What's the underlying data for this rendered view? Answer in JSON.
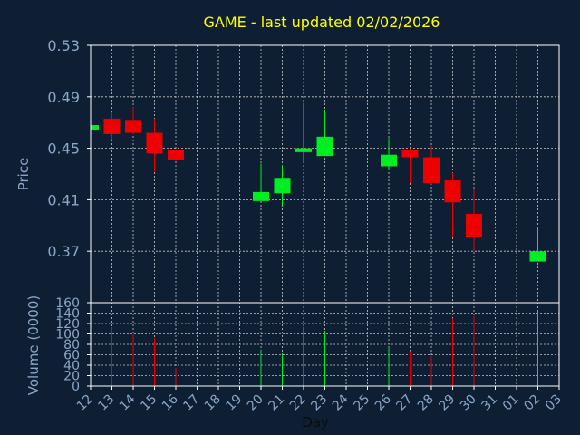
{
  "chart_data": {
    "type": "candlestick",
    "title": "GAME - last updated 02/02/2026",
    "price_panel": {
      "ylabel": "Price",
      "ylim": [
        0.33,
        0.53
      ],
      "yticks": [
        "0.53",
        "0.49",
        "0.45",
        "0.41",
        "0.37"
      ],
      "ytick_values": [
        0.53,
        0.49,
        0.45,
        0.41,
        0.37
      ],
      "grid": true
    },
    "volume_panel": {
      "ylabel": "Volume (0000)",
      "ylim": [
        0,
        160
      ],
      "yticks": [
        "160",
        "140",
        "120",
        "100",
        "80",
        "60",
        "40",
        "20",
        "0"
      ],
      "ytick_values": [
        160,
        140,
        120,
        100,
        80,
        60,
        40,
        20,
        0
      ],
      "grid": true
    },
    "xlabel": "Day",
    "x_ticks": [
      "12",
      "13",
      "14",
      "15",
      "16",
      "17",
      "18",
      "19",
      "20",
      "21",
      "22",
      "23",
      "24",
      "25",
      "26",
      "27",
      "28",
      "29",
      "30",
      "31",
      "01",
      "02",
      "03"
    ],
    "colors": {
      "up": "#00ee22",
      "down": "#ee0000",
      "title": "#ffff00",
      "label": "#8aa6c8",
      "frame": "#ffffff",
      "background": "#0f1f33"
    },
    "candles": [
      {
        "x": "12",
        "open": 0.4645,
        "high": 0.468,
        "low": 0.4645,
        "close": 0.468,
        "volume": 0
      },
      {
        "x": "13",
        "open": 0.473,
        "high": 0.478,
        "low": 0.456,
        "close": 0.461,
        "volume": 113
      },
      {
        "x": "14",
        "open": 0.472,
        "high": 0.482,
        "low": 0.461,
        "close": 0.462,
        "volume": 99
      },
      {
        "x": "15",
        "open": 0.462,
        "high": 0.473,
        "low": 0.432,
        "close": 0.446,
        "volume": 92
      },
      {
        "x": "16",
        "open": 0.449,
        "high": 0.449,
        "low": 0.44,
        "close": 0.441,
        "volume": 35
      },
      {
        "x": "20",
        "open": 0.409,
        "high": 0.438,
        "low": 0.409,
        "close": 0.416,
        "volume": 70
      },
      {
        "x": "21",
        "open": 0.415,
        "high": 0.437,
        "low": 0.405,
        "close": 0.427,
        "volume": 63
      },
      {
        "x": "22",
        "open": 0.447,
        "high": 0.485,
        "low": 0.439,
        "close": 0.45,
        "volume": 113
      },
      {
        "x": "23",
        "open": 0.444,
        "high": 0.48,
        "low": 0.444,
        "close": 0.459,
        "volume": 106
      },
      {
        "x": "26",
        "open": 0.436,
        "high": 0.458,
        "low": 0.433,
        "close": 0.445,
        "volume": 74
      },
      {
        "x": "27",
        "open": 0.449,
        "high": 0.45,
        "low": 0.423,
        "close": 0.443,
        "volume": 67
      },
      {
        "x": "28",
        "open": 0.443,
        "high": 0.452,
        "low": 0.422,
        "close": 0.423,
        "volume": 57
      },
      {
        "x": "29",
        "open": 0.425,
        "high": 0.431,
        "low": 0.381,
        "close": 0.408,
        "volume": 130
      },
      {
        "x": "30",
        "open": 0.399,
        "high": 0.418,
        "low": 0.37,
        "close": 0.381,
        "volume": 134
      },
      {
        "x": "02",
        "open": 0.362,
        "high": 0.389,
        "low": 0.362,
        "close": 0.37,
        "volume": 145
      }
    ]
  }
}
